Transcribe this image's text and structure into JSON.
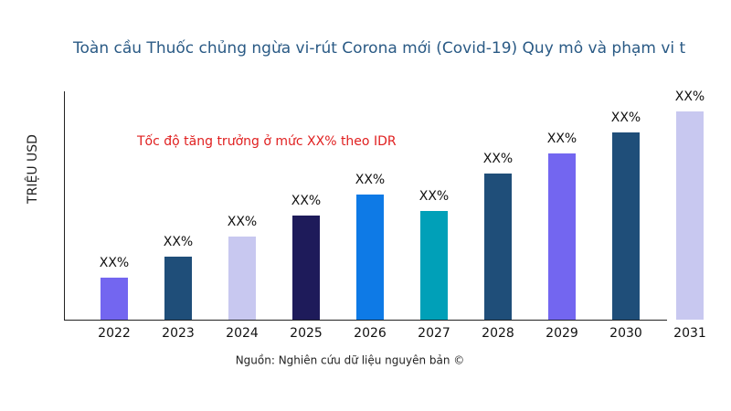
{
  "chart_data": {
    "type": "bar",
    "title": "Toàn cầu Thuốc chủng ngừa vi-rút Corona mới (Covid-19) Quy mô và phạm vi t",
    "y_label": "TRIỆU USD",
    "annotation": "Tốc độ tăng trưởng ở mức XX% theo IDR",
    "source": "Nguồn: Nghiên cứu dữ liệu nguyên bản ©",
    "categories": [
      "2022",
      "2023",
      "2024",
      "2025",
      "2026",
      "2027",
      "2028",
      "2029",
      "2030",
      "2031"
    ],
    "values": [
      46,
      69,
      91,
      114,
      137,
      119,
      160,
      182,
      205,
      228
    ],
    "value_labels": [
      "XX%",
      "XX%",
      "XX%",
      "XX%",
      "XX%",
      "XX%",
      "XX%",
      "XX%",
      "XX%",
      "XX%"
    ],
    "colors": [
      "#7366f0",
      "#1f4e79",
      "#c8c8f0",
      "#1e1b5a",
      "#0e7ae6",
      "#00a0b8",
      "#1f4e79",
      "#7366f0",
      "#1f4e79",
      "#c8c8f0"
    ],
    "ylim": [
      0,
      250
    ]
  }
}
